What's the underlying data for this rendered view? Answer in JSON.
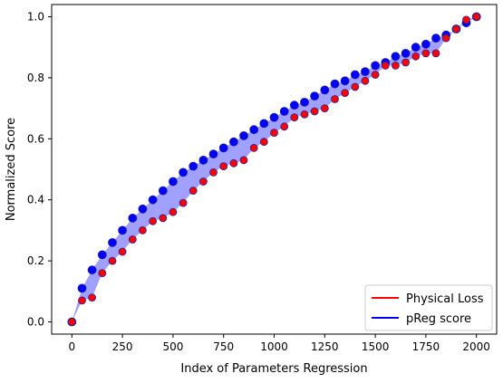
{
  "chart_data": {
    "type": "scatter",
    "title": "",
    "xlabel": "Index of Parameters Regression",
    "ylabel": "Normalized Score",
    "xlim": [
      -100,
      2100
    ],
    "ylim": [
      -0.04,
      1.04
    ],
    "xticks": [
      0,
      250,
      500,
      750,
      1000,
      1250,
      1500,
      1750,
      2000
    ],
    "yticks": [
      0.0,
      0.2,
      0.4,
      0.6,
      0.8,
      1.0
    ],
    "xtick_labels": [
      "0",
      "250",
      "500",
      "750",
      "1000",
      "1250",
      "1500",
      "1750",
      "2000"
    ],
    "ytick_labels": [
      "0.0",
      "0.2",
      "0.4",
      "0.6",
      "0.8",
      "1.0"
    ],
    "grid": false,
    "legend_position": "bottom-right",
    "fill_between": {
      "color": "#8080ff",
      "between": [
        "pReg score",
        "Physical Loss"
      ]
    },
    "series": [
      {
        "name": "pReg score",
        "color": "#0000ff",
        "x": [
          0,
          50,
          100,
          150,
          200,
          250,
          300,
          350,
          400,
          450,
          500,
          550,
          600,
          650,
          700,
          750,
          800,
          850,
          900,
          950,
          1000,
          1050,
          1100,
          1150,
          1200,
          1250,
          1300,
          1350,
          1400,
          1450,
          1500,
          1550,
          1600,
          1650,
          1700,
          1750,
          1800,
          1850,
          1900,
          1950,
          2000
        ],
        "y": [
          0.0,
          0.11,
          0.17,
          0.22,
          0.26,
          0.3,
          0.34,
          0.37,
          0.4,
          0.43,
          0.46,
          0.49,
          0.51,
          0.53,
          0.55,
          0.57,
          0.59,
          0.61,
          0.63,
          0.65,
          0.67,
          0.69,
          0.71,
          0.72,
          0.74,
          0.76,
          0.78,
          0.79,
          0.81,
          0.82,
          0.84,
          0.85,
          0.87,
          0.88,
          0.9,
          0.91,
          0.93,
          0.94,
          0.96,
          0.98,
          1.0
        ]
      },
      {
        "name": "Physical Loss",
        "color": "#ff0000",
        "x": [
          0,
          50,
          100,
          150,
          200,
          250,
          300,
          350,
          400,
          450,
          500,
          550,
          600,
          650,
          700,
          750,
          800,
          850,
          900,
          950,
          1000,
          1050,
          1100,
          1150,
          1200,
          1250,
          1300,
          1350,
          1400,
          1450,
          1500,
          1550,
          1600,
          1650,
          1700,
          1750,
          1800,
          1850,
          1900,
          1950,
          2000
        ],
        "y": [
          0.0,
          0.07,
          0.08,
          0.16,
          0.2,
          0.23,
          0.27,
          0.3,
          0.33,
          0.34,
          0.36,
          0.39,
          0.43,
          0.46,
          0.49,
          0.51,
          0.52,
          0.53,
          0.57,
          0.59,
          0.62,
          0.64,
          0.67,
          0.68,
          0.69,
          0.7,
          0.73,
          0.75,
          0.77,
          0.79,
          0.81,
          0.84,
          0.84,
          0.85,
          0.87,
          0.88,
          0.88,
          0.93,
          0.96,
          0.99,
          1.0
        ]
      }
    ]
  }
}
